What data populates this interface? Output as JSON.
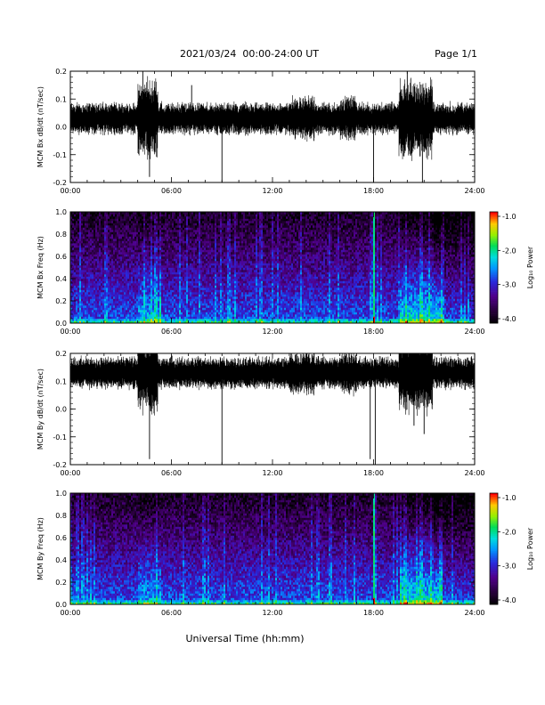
{
  "header": {
    "title": "2021/03/24  00:00-24:00 UT",
    "page": "Page 1/1",
    "xlabel": "Universal Time (hh:mm)"
  },
  "colorbar": {
    "label": "Log₁₀ Power",
    "ticks": [
      "-1.0",
      "-2.0",
      "-3.0",
      "-4.0"
    ],
    "range": [
      -4.0,
      -1.0
    ]
  },
  "chart_data": [
    {
      "type": "line",
      "ylabel": "MCM Bx dB/dt (nT/sec)",
      "xlim": [
        0,
        24
      ],
      "ylim": [
        -0.2,
        0.2
      ],
      "x_ticks": [
        "00:00",
        "06:00",
        "12:00",
        "18:00",
        "24:00"
      ],
      "y_ticks": [
        "0.2",
        "0.1",
        "0.0",
        "-0.1",
        "-0.2"
      ],
      "baseline": 0.03,
      "bursts": [
        {
          "x": 4.3,
          "y": 0.2
        },
        {
          "x": 4.7,
          "y": -0.18
        },
        {
          "x": 7.2,
          "y": 0.15
        },
        {
          "x": 9.0,
          "y": -0.2
        },
        {
          "x": 13.8,
          "y": 0.1
        },
        {
          "x": 18.0,
          "y": -0.2
        },
        {
          "x": 20.0,
          "y": 0.2
        },
        {
          "x": 20.9,
          "y": -0.2
        }
      ]
    },
    {
      "type": "heatmap",
      "ylabel": "MCM Bx Freq (Hz)",
      "xlim": [
        0,
        24
      ],
      "ylim": [
        0.0,
        1.0
      ],
      "x_ticks": [
        "00:00",
        "06:00",
        "12:00",
        "18:00",
        "24:00"
      ],
      "y_ticks": [
        "1.0",
        "0.8",
        "0.6",
        "0.4",
        "0.2",
        "0.0"
      ],
      "zlim": [
        -4.0,
        -1.0
      ]
    },
    {
      "type": "line",
      "ylabel": "MCM By dB/dt (nT/sec)",
      "xlim": [
        0,
        24
      ],
      "ylim": [
        -0.2,
        0.2
      ],
      "x_ticks": [
        "00:00",
        "06:00",
        "12:00",
        "18:00",
        "24:00"
      ],
      "y_ticks": [
        "0.2",
        "0.1",
        "0.0",
        "-0.1",
        "-0.2"
      ],
      "baseline": 0.13,
      "bursts": [
        {
          "x": 4.7,
          "y": -0.18
        },
        {
          "x": 9.0,
          "y": -0.2
        },
        {
          "x": 17.8,
          "y": -0.18
        },
        {
          "x": 18.1,
          "y": -0.2
        },
        {
          "x": 20.4,
          "y": -0.06
        },
        {
          "x": 21.0,
          "y": -0.09
        }
      ]
    },
    {
      "type": "heatmap",
      "ylabel": "MCM By Freq (Hz)",
      "xlim": [
        0,
        24
      ],
      "ylim": [
        0.0,
        1.0
      ],
      "x_ticks": [
        "00:00",
        "06:00",
        "12:00",
        "18:00",
        "24:00"
      ],
      "y_ticks": [
        "1.0",
        "0.8",
        "0.6",
        "0.4",
        "0.2",
        "0.0"
      ],
      "zlim": [
        -4.0,
        -1.0
      ]
    }
  ]
}
